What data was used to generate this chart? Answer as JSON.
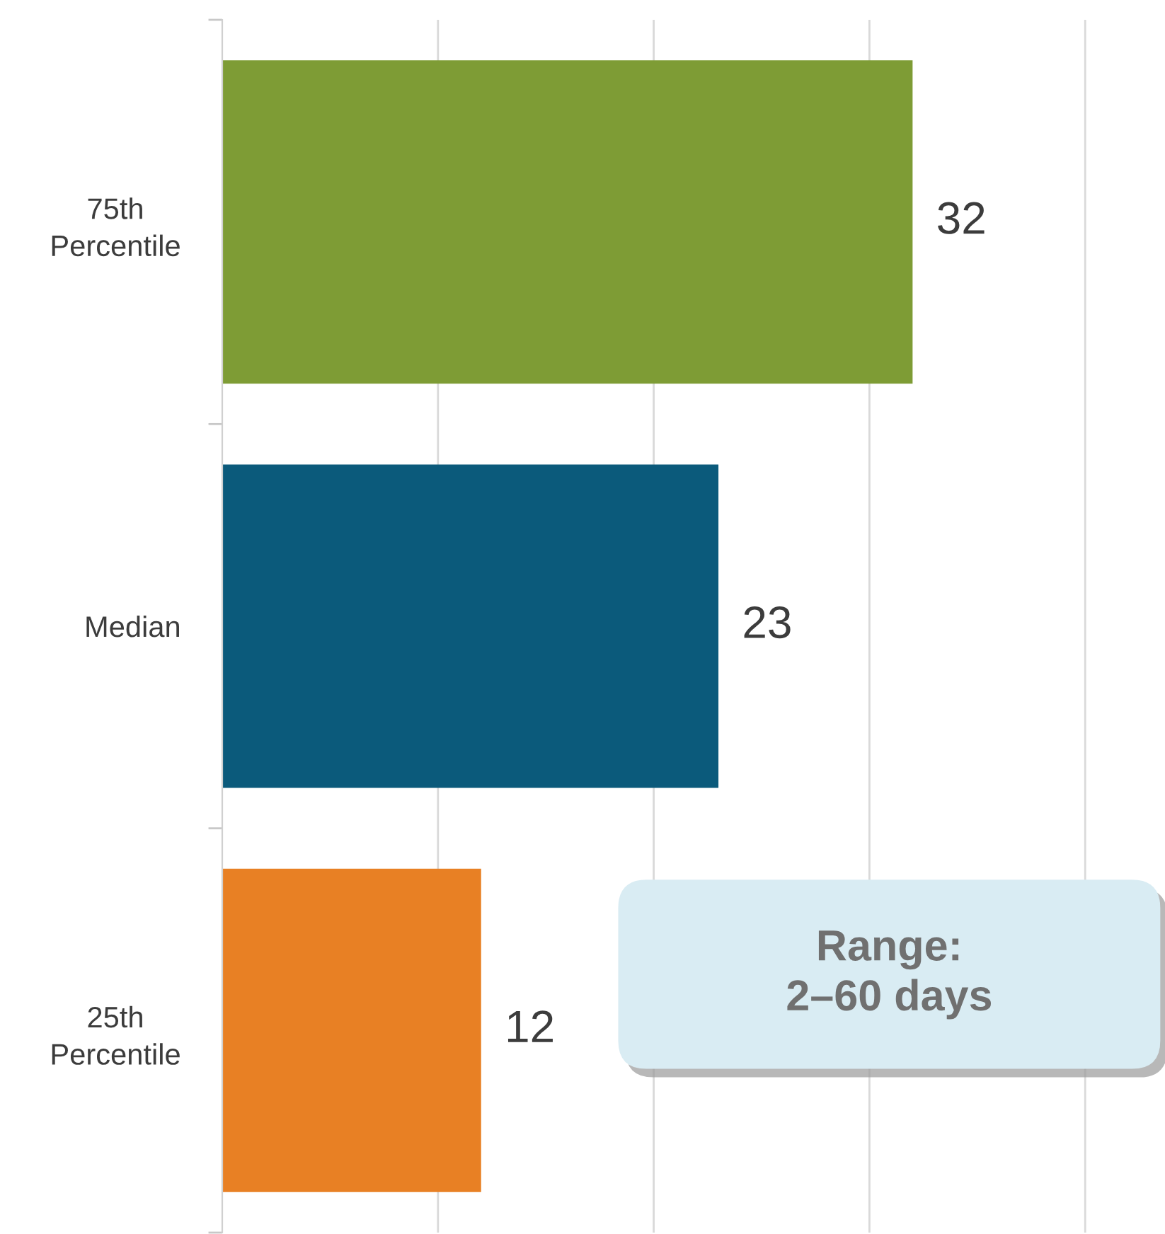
{
  "chart_data": {
    "type": "bar",
    "orientation": "horizontal",
    "categories": [
      "75th\nPercentile",
      "Median",
      "25th\nPercentile"
    ],
    "values": [
      32,
      23,
      12
    ],
    "colors": [
      "#7e9c35",
      "#0b5a7b",
      "#e88024"
    ],
    "data_labels": true,
    "xlim": [
      0,
      43.7
    ],
    "xticks": [
      {
        "value": 10,
        "label": null
      },
      {
        "value": 20,
        "label": null
      },
      {
        "value": 30,
        "label": null
      },
      {
        "value": 40,
        "label": null
      }
    ],
    "grid": "x",
    "tick_labels": "y",
    "annotations": [
      "Range:\n2–60 days"
    ]
  }
}
